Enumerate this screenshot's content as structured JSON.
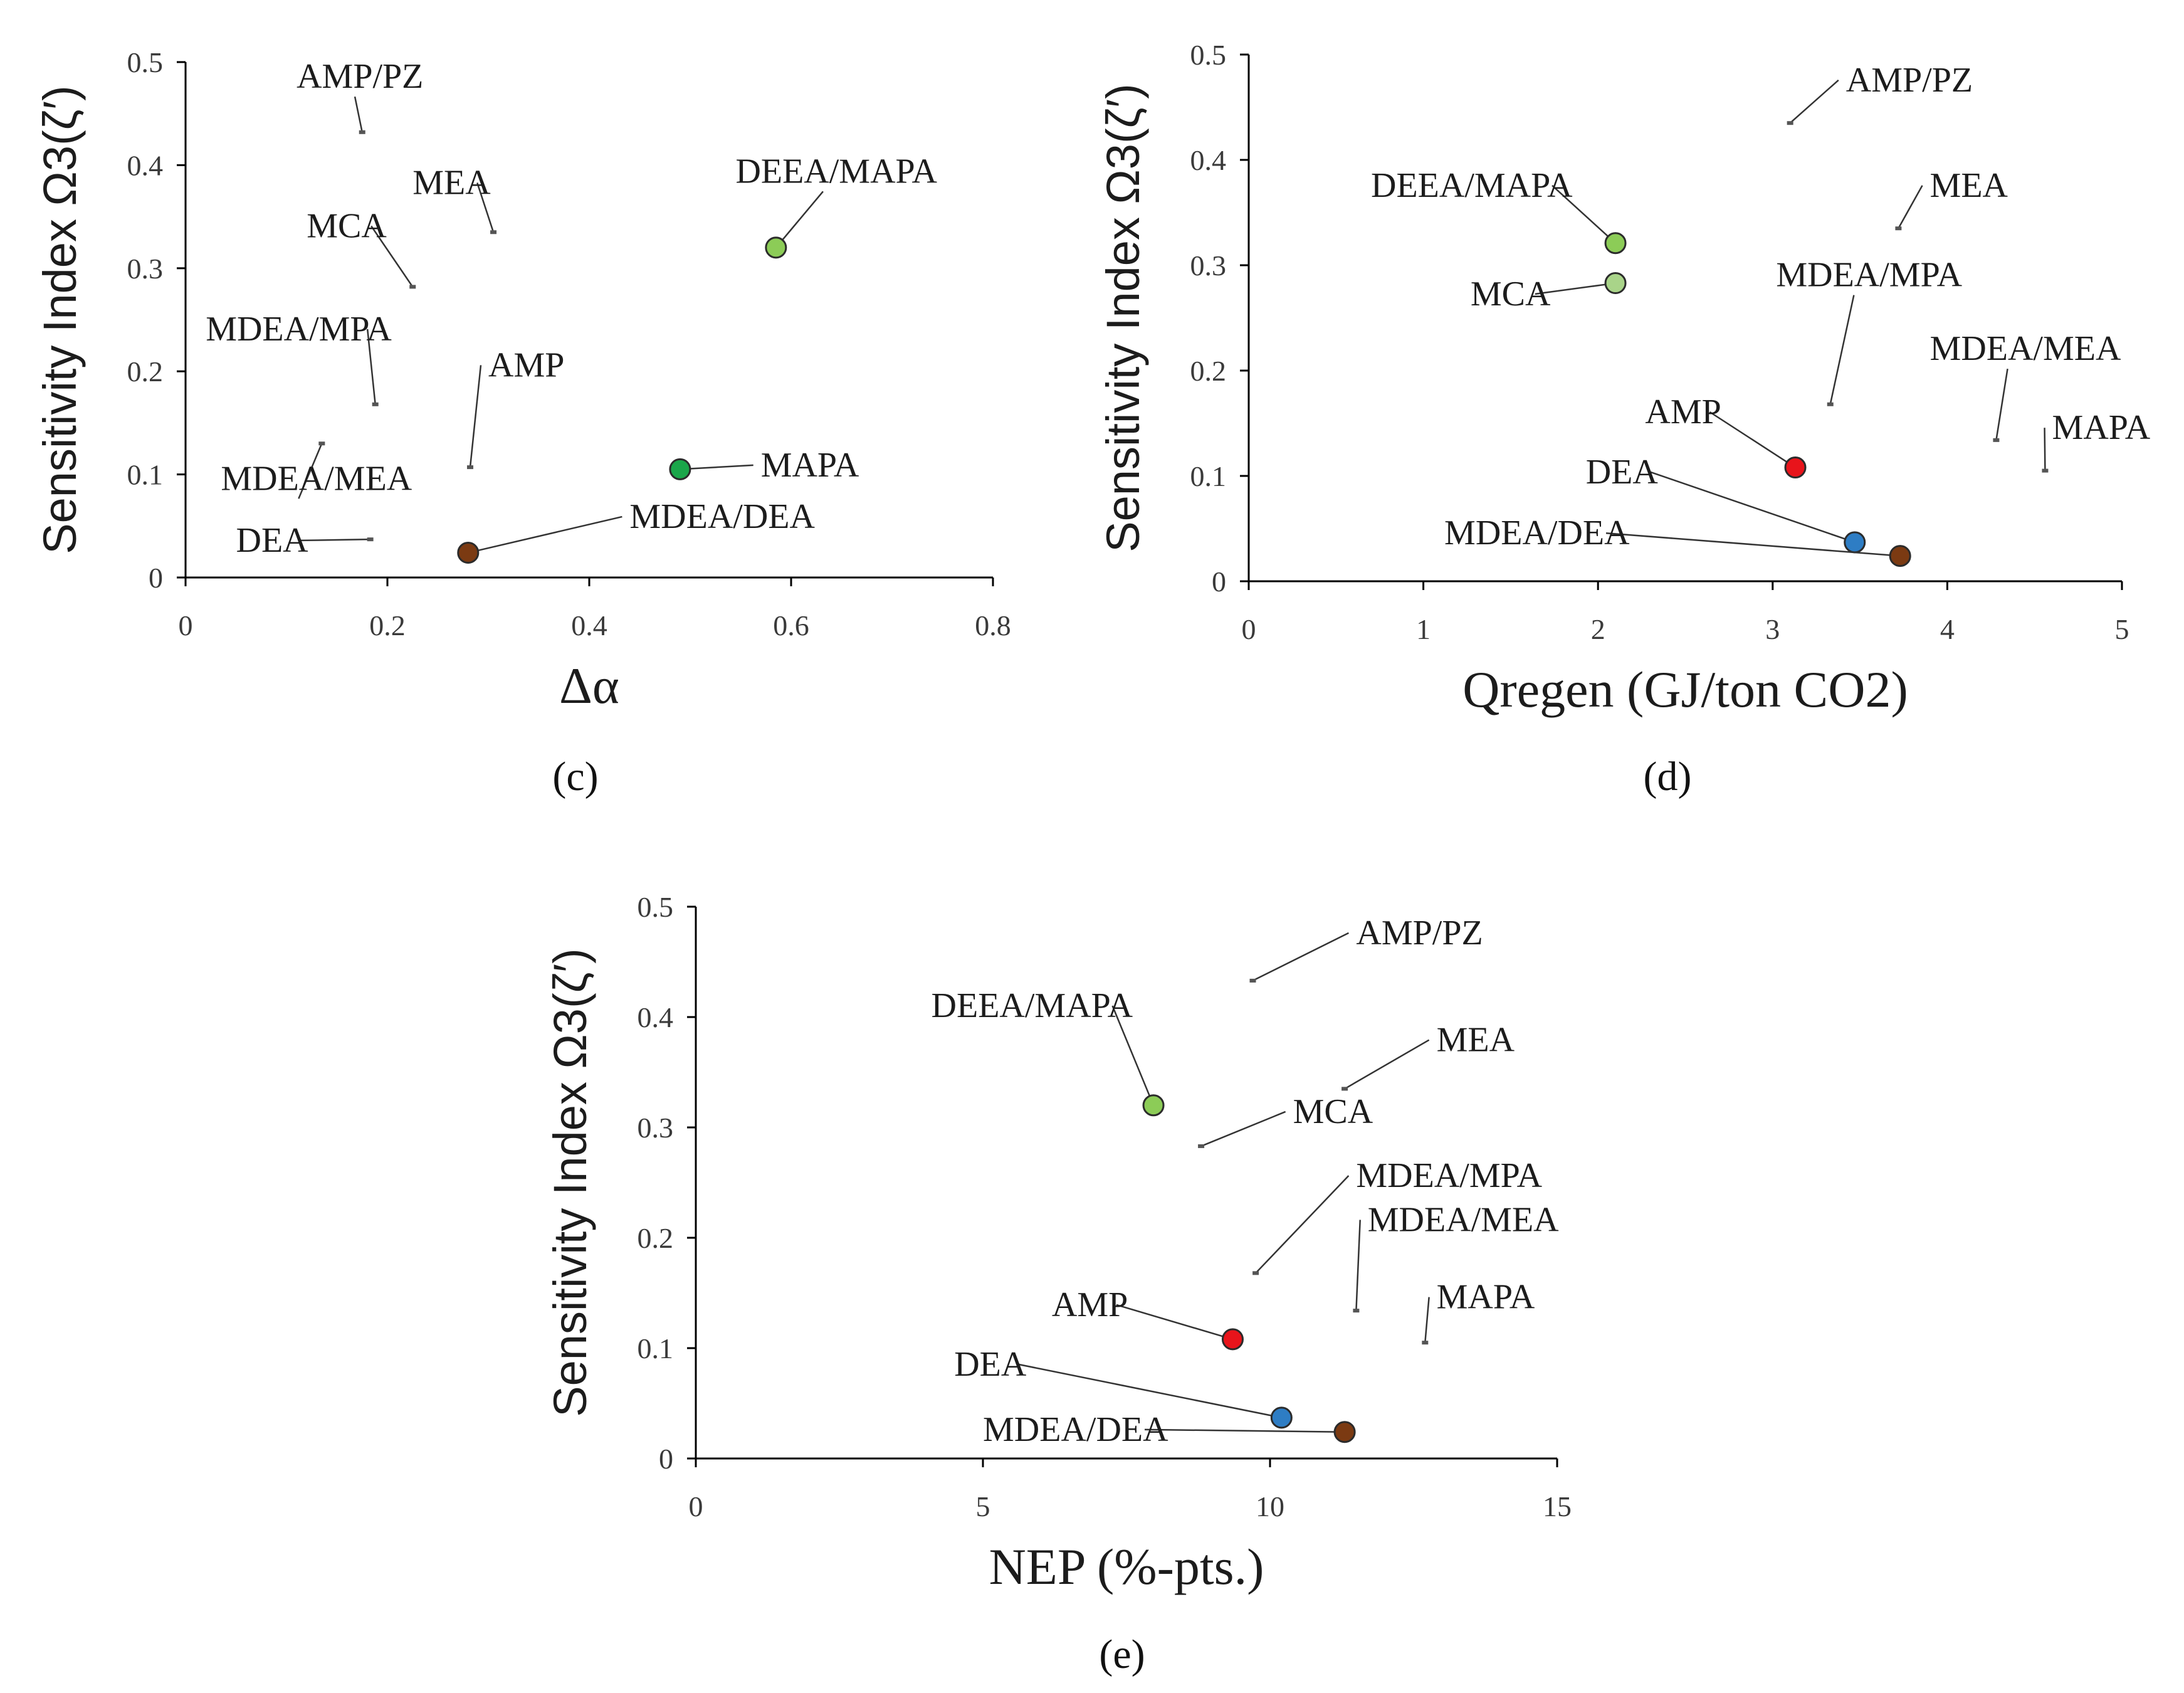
{
  "chart_data": [
    {
      "id": "c",
      "type": "scatter",
      "caption_letter": "c",
      "ylabel": "Sensitivity  Index Ω3(ζ′)",
      "xlabel": "Δα",
      "xlim": [
        0,
        0.8
      ],
      "ylim": [
        0,
        0.5
      ],
      "xticks": [
        "0",
        "0.2",
        "0.4",
        "0.6",
        "0.8"
      ],
      "yticks": [
        "0",
        "0.1",
        "0.2",
        "0.3",
        "0.4",
        "0.5"
      ],
      "points": [
        {
          "label": "AMP/PZ",
          "x": 0.175,
          "y": 0.432,
          "color": "",
          "lx": 0.11,
          "ly": 0.475,
          "ax": "start"
        },
        {
          "label": "MEA",
          "x": 0.305,
          "y": 0.335,
          "color": "",
          "lx": 0.225,
          "ly": 0.372,
          "ax": "start"
        },
        {
          "label": "MCA",
          "x": 0.225,
          "y": 0.282,
          "color": "",
          "lx": 0.12,
          "ly": 0.33,
          "ax": "start"
        },
        {
          "label": "MDEA/MPA",
          "x": 0.188,
          "y": 0.168,
          "color": "",
          "lx": 0.02,
          "ly": 0.23,
          "ax": "start"
        },
        {
          "label": "AMP",
          "x": 0.282,
          "y": 0.107,
          "color": "",
          "lx": 0.3,
          "ly": 0.195,
          "ax": "start"
        },
        {
          "label": "MDEA/MEA",
          "x": 0.135,
          "y": 0.13,
          "color": "",
          "lx": 0.035,
          "ly": 0.085,
          "ax": "start"
        },
        {
          "label": "DEA",
          "x": 0.183,
          "y": 0.037,
          "color": "",
          "lx": 0.05,
          "ly": 0.025,
          "ax": "start"
        },
        {
          "label": "MDEA/DEA",
          "x": 0.28,
          "y": 0.024,
          "color": "#7b3a12",
          "lx": 0.44,
          "ly": 0.048,
          "ax": "start"
        },
        {
          "label": "MAPA",
          "x": 0.49,
          "y": 0.105,
          "color": "#1aa64a",
          "lx": 0.57,
          "ly": 0.098,
          "ax": "start"
        },
        {
          "label": "DEEA/MAPA",
          "x": 0.585,
          "y": 0.32,
          "color": "#8ccc57",
          "lx": 0.545,
          "ly": 0.383,
          "ax": "start"
        }
      ]
    },
    {
      "id": "d",
      "type": "scatter",
      "caption_letter": "d",
      "ylabel": "Sensitivity  Index Ω3(ζ′)",
      "xlabel": "Qregen (GJ/ton CO2)",
      "xlim": [
        0,
        5
      ],
      "ylim": [
        0,
        0.5
      ],
      "xticks": [
        "0",
        "1",
        "2",
        "3",
        "4",
        "5"
      ],
      "yticks": [
        "0",
        "0.1",
        "0.2",
        "0.3",
        "0.4",
        "0.5"
      ],
      "points": [
        {
          "label": "AMP/PZ",
          "x": 3.1,
          "y": 0.435,
          "color": "",
          "lx": 3.42,
          "ly": 0.465,
          "ax": "start"
        },
        {
          "label": "MEA",
          "x": 3.72,
          "y": 0.335,
          "color": "",
          "lx": 3.9,
          "ly": 0.365,
          "ax": "start"
        },
        {
          "label": "MDEA/MPA",
          "x": 3.33,
          "y": 0.168,
          "color": "",
          "lx": 3.02,
          "ly": 0.28,
          "ax": "start"
        },
        {
          "label": "MDEA/MEA",
          "x": 4.28,
          "y": 0.134,
          "color": "",
          "lx": 3.9,
          "ly": 0.21,
          "ax": "start"
        },
        {
          "label": "MAPA",
          "x": 4.56,
          "y": 0.105,
          "color": "",
          "lx": 4.6,
          "ly": 0.135,
          "ax": "start"
        },
        {
          "label": "DEEA/MAPA",
          "x": 2.1,
          "y": 0.321,
          "color": "#8ccc57",
          "lx": 0.7,
          "ly": 0.365,
          "ax": "start"
        },
        {
          "label": "MCA",
          "x": 2.1,
          "y": 0.283,
          "color": "#a9d489",
          "lx": 1.27,
          "ly": 0.262,
          "ax": "start"
        },
        {
          "label": "AMP",
          "x": 3.13,
          "y": 0.108,
          "color": "#e8141b",
          "lx": 2.27,
          "ly": 0.15,
          "ax": "start"
        },
        {
          "label": "DEA",
          "x": 3.47,
          "y": 0.037,
          "color": "#2e7dc4",
          "lx": 1.93,
          "ly": 0.093,
          "ax": "start"
        },
        {
          "label": "MDEA/DEA",
          "x": 3.73,
          "y": 0.024,
          "color": "#7b3a12",
          "lx": 1.12,
          "ly": 0.035,
          "ax": "start"
        }
      ]
    },
    {
      "id": "e",
      "type": "scatter",
      "caption_letter": "e",
      "ylabel": "Sensitivity  Index Ω3(ζ′)",
      "xlabel": "NEP (%-pts.)",
      "xlim": [
        0,
        15
      ],
      "ylim": [
        0,
        0.5
      ],
      "xticks": [
        "0",
        "5",
        "10",
        "15"
      ],
      "yticks": [
        "0",
        "0.1",
        "0.2",
        "0.3",
        "0.4",
        "0.5"
      ],
      "points": [
        {
          "label": "AMP/PZ",
          "x": 9.7,
          "y": 0.433,
          "color": "",
          "lx": 11.5,
          "ly": 0.466,
          "ax": "start"
        },
        {
          "label": "MEA",
          "x": 11.3,
          "y": 0.335,
          "color": "",
          "lx": 12.9,
          "ly": 0.369,
          "ax": "start"
        },
        {
          "label": "MCA",
          "x": 8.8,
          "y": 0.283,
          "color": "",
          "lx": 10.4,
          "ly": 0.304,
          "ax": "start"
        },
        {
          "label": "MDEA/MPA",
          "x": 9.75,
          "y": 0.168,
          "color": "",
          "lx": 11.5,
          "ly": 0.246,
          "ax": "start"
        },
        {
          "label": "MDEA/MEA",
          "x": 11.5,
          "y": 0.134,
          "color": "",
          "lx": 11.7,
          "ly": 0.206,
          "ax": "start"
        },
        {
          "label": "MAPA",
          "x": 12.7,
          "y": 0.105,
          "color": "",
          "lx": 12.9,
          "ly": 0.136,
          "ax": "start"
        },
        {
          "label": "DEEA/MAPA",
          "x": 7.97,
          "y": 0.32,
          "color": "#8ccc57",
          "lx": 4.1,
          "ly": 0.4,
          "ax": "start"
        },
        {
          "label": "AMP",
          "x": 9.35,
          "y": 0.108,
          "color": "#e8141b",
          "lx": 6.2,
          "ly": 0.129,
          "ax": "start"
        },
        {
          "label": "DEA",
          "x": 10.2,
          "y": 0.037,
          "color": "#2e7dc4",
          "lx": 4.5,
          "ly": 0.075,
          "ax": "start"
        },
        {
          "label": "MDEA/DEA",
          "x": 11.3,
          "y": 0.024,
          "color": "#7b3a12",
          "lx": 5.0,
          "ly": 0.016,
          "ax": "start"
        }
      ]
    }
  ]
}
